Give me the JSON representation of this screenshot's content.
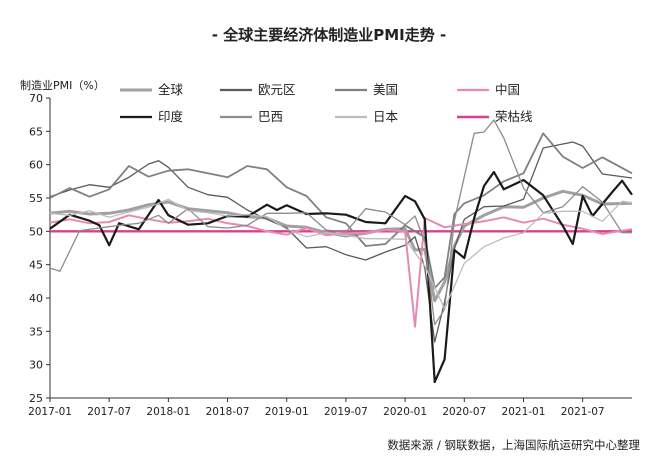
{
  "chart_data": {
    "type": "line",
    "title": "- 全球主要经济体制造业PMI走势 -",
    "ylabel": "制造业PMI（%）",
    "xlabel": "",
    "source": "数据来源 / 钢联数据，上海国际航运研究中心整理",
    "ylim": [
      25,
      70
    ],
    "yticks": [
      25,
      30,
      35,
      40,
      45,
      50,
      55,
      60,
      65,
      70
    ],
    "xlim": [
      "2017-01",
      "2021-12"
    ],
    "xticks": [
      "2017-01",
      "2017-07",
      "2018-01",
      "2018-07",
      "2019-01",
      "2019-07",
      "2020-01",
      "2020-07",
      "2021-01",
      "2021-07"
    ],
    "grid": false,
    "legend_position": "top",
    "reference_line": {
      "name": "荣枯线",
      "value": 50,
      "color": "#d6418f"
    },
    "series": [
      {
        "name": "全球",
        "color": "#a0a0a0",
        "width": 3,
        "points": [
          [
            "2017-01",
            52.7
          ],
          [
            "2017-03",
            53
          ],
          [
            "2017-05",
            52.6
          ],
          [
            "2017-07",
            52.7
          ],
          [
            "2017-09",
            53.2
          ],
          [
            "2017-11",
            54
          ],
          [
            "2018-01",
            54.4
          ],
          [
            "2018-03",
            53.4
          ],
          [
            "2018-05",
            53.1
          ],
          [
            "2018-07",
            52.8
          ],
          [
            "2018-09",
            52.2
          ],
          [
            "2018-11",
            52
          ],
          [
            "2019-01",
            50.8
          ],
          [
            "2019-03",
            50.6
          ],
          [
            "2019-05",
            49.8
          ],
          [
            "2019-07",
            49.3
          ],
          [
            "2019-09",
            49.7
          ],
          [
            "2019-11",
            50.3
          ],
          [
            "2020-01",
            50.4
          ],
          [
            "2020-02",
            47.2
          ],
          [
            "2020-03",
            47.3
          ],
          [
            "2020-04",
            39.6
          ],
          [
            "2020-05",
            42.4
          ],
          [
            "2020-06",
            47.8
          ],
          [
            "2020-07",
            50.8
          ],
          [
            "2020-09",
            52.4
          ],
          [
            "2020-11",
            53.7
          ],
          [
            "2021-01",
            53.6
          ],
          [
            "2021-03",
            55
          ],
          [
            "2021-05",
            56
          ],
          [
            "2021-07",
            55.4
          ],
          [
            "2021-09",
            54.1
          ],
          [
            "2021-12",
            54.2
          ]
        ]
      },
      {
        "name": "欧元区",
        "color": "#5a5a5a",
        "width": 1.3,
        "points": [
          [
            "2017-01",
            55.2
          ],
          [
            "2017-03",
            56.2
          ],
          [
            "2017-05",
            57
          ],
          [
            "2017-07",
            56.6
          ],
          [
            "2017-09",
            58.1
          ],
          [
            "2017-11",
            60.1
          ],
          [
            "2017-12",
            60.6
          ],
          [
            "2018-01",
            59.6
          ],
          [
            "2018-03",
            56.6
          ],
          [
            "2018-05",
            55.5
          ],
          [
            "2018-07",
            55.1
          ],
          [
            "2018-09",
            53.2
          ],
          [
            "2018-11",
            51.8
          ],
          [
            "2019-01",
            50.5
          ],
          [
            "2019-03",
            47.5
          ],
          [
            "2019-05",
            47.7
          ],
          [
            "2019-07",
            46.5
          ],
          [
            "2019-09",
            45.7
          ],
          [
            "2019-11",
            46.9
          ],
          [
            "2020-01",
            47.9
          ],
          [
            "2020-02",
            49.2
          ],
          [
            "2020-03",
            44.5
          ],
          [
            "2020-04",
            33.4
          ],
          [
            "2020-05",
            39.4
          ],
          [
            "2020-06",
            47.4
          ],
          [
            "2020-07",
            51.8
          ],
          [
            "2020-09",
            53.7
          ],
          [
            "2020-11",
            53.8
          ],
          [
            "2021-01",
            54.8
          ],
          [
            "2021-03",
            62.5
          ],
          [
            "2021-05",
            63.1
          ],
          [
            "2021-06",
            63.4
          ],
          [
            "2021-07",
            62.8
          ],
          [
            "2021-09",
            58.6
          ],
          [
            "2021-12",
            58
          ]
        ]
      },
      {
        "name": "美国",
        "color": "#808080",
        "width": 1.8,
        "points": [
          [
            "2017-01",
            55
          ],
          [
            "2017-03",
            56.5
          ],
          [
            "2017-05",
            55.2
          ],
          [
            "2017-07",
            56.3
          ],
          [
            "2017-09",
            59.8
          ],
          [
            "2017-11",
            58.2
          ],
          [
            "2018-01",
            59.1
          ],
          [
            "2018-03",
            59.3
          ],
          [
            "2018-05",
            58.7
          ],
          [
            "2018-07",
            58.1
          ],
          [
            "2018-09",
            59.8
          ],
          [
            "2018-11",
            59.3
          ],
          [
            "2019-01",
            56.6
          ],
          [
            "2019-03",
            55.3
          ],
          [
            "2019-05",
            52.1
          ],
          [
            "2019-07",
            51.2
          ],
          [
            "2019-09",
            47.8
          ],
          [
            "2019-11",
            48.1
          ],
          [
            "2020-01",
            50.9
          ],
          [
            "2020-03",
            49.1
          ],
          [
            "2020-04",
            41.5
          ],
          [
            "2020-05",
            43.1
          ],
          [
            "2020-06",
            52.6
          ],
          [
            "2020-07",
            54.2
          ],
          [
            "2020-09",
            55.4
          ],
          [
            "2020-11",
            57.5
          ],
          [
            "2021-01",
            58.7
          ],
          [
            "2021-03",
            64.7
          ],
          [
            "2021-05",
            61.2
          ],
          [
            "2021-07",
            59.5
          ],
          [
            "2021-09",
            61.1
          ],
          [
            "2021-12",
            58.7
          ]
        ]
      },
      {
        "name": "中国",
        "color": "#e889b3",
        "width": 2,
        "points": [
          [
            "2017-01",
            51.3
          ],
          [
            "2017-03",
            51.8
          ],
          [
            "2017-05",
            51.2
          ],
          [
            "2017-07",
            51.4
          ],
          [
            "2017-09",
            52.4
          ],
          [
            "2017-11",
            51.8
          ],
          [
            "2018-01",
            51.3
          ],
          [
            "2018-03",
            51.5
          ],
          [
            "2018-05",
            51.9
          ],
          [
            "2018-07",
            51.2
          ],
          [
            "2018-09",
            50.8
          ],
          [
            "2018-11",
            50
          ],
          [
            "2019-01",
            49.5
          ],
          [
            "2019-03",
            50.5
          ],
          [
            "2019-05",
            49.4
          ],
          [
            "2019-07",
            49.7
          ],
          [
            "2019-09",
            49.8
          ],
          [
            "2019-11",
            50.2
          ],
          [
            "2020-01",
            50
          ],
          [
            "2020-02",
            35.7
          ],
          [
            "2020-03",
            52
          ],
          [
            "2020-05",
            50.6
          ],
          [
            "2020-07",
            51.1
          ],
          [
            "2020-09",
            51.5
          ],
          [
            "2020-11",
            52.1
          ],
          [
            "2021-01",
            51.3
          ],
          [
            "2021-03",
            51.9
          ],
          [
            "2021-05",
            51
          ],
          [
            "2021-07",
            50.4
          ],
          [
            "2021-09",
            49.6
          ],
          [
            "2021-11",
            50.1
          ],
          [
            "2021-12",
            50.3
          ]
        ]
      },
      {
        "name": "印度",
        "color": "#1a1a1a",
        "width": 2.2,
        "points": [
          [
            "2017-01",
            50.4
          ],
          [
            "2017-03",
            52.5
          ],
          [
            "2017-05",
            51.6
          ],
          [
            "2017-06",
            50.9
          ],
          [
            "2017-07",
            47.9
          ],
          [
            "2017-08",
            51.2
          ],
          [
            "2017-10",
            50.3
          ],
          [
            "2017-12",
            54.7
          ],
          [
            "2018-01",
            52.4
          ],
          [
            "2018-03",
            51
          ],
          [
            "2018-05",
            51.2
          ],
          [
            "2018-07",
            52.3
          ],
          [
            "2018-09",
            52.2
          ],
          [
            "2018-11",
            54
          ],
          [
            "2018-12",
            53.2
          ],
          [
            "2019-01",
            53.9
          ],
          [
            "2019-03",
            52.6
          ],
          [
            "2019-05",
            52.7
          ],
          [
            "2019-07",
            52.5
          ],
          [
            "2019-09",
            51.4
          ],
          [
            "2019-11",
            51.2
          ],
          [
            "2020-01",
            55.3
          ],
          [
            "2020-02",
            54.5
          ],
          [
            "2020-03",
            51.8
          ],
          [
            "2020-04",
            27.4
          ],
          [
            "2020-05",
            30.8
          ],
          [
            "2020-06",
            47.2
          ],
          [
            "2020-07",
            46
          ],
          [
            "2020-08",
            52
          ],
          [
            "2020-09",
            56.8
          ],
          [
            "2020-10",
            58.9
          ],
          [
            "2020-11",
            56.3
          ],
          [
            "2021-01",
            57.7
          ],
          [
            "2021-03",
            55.4
          ],
          [
            "2021-05",
            50.8
          ],
          [
            "2021-06",
            48.1
          ],
          [
            "2021-07",
            55.3
          ],
          [
            "2021-08",
            52.3
          ],
          [
            "2021-10",
            55.9
          ],
          [
            "2021-11",
            57.6
          ],
          [
            "2021-12",
            55.5
          ]
        ]
      },
      {
        "name": "巴西",
        "color": "#8c8c8c",
        "width": 1.3,
        "points": [
          [
            "2017-01",
            44.5
          ],
          [
            "2017-02",
            44
          ],
          [
            "2017-04",
            50.1
          ],
          [
            "2017-06",
            50.5
          ],
          [
            "2017-08",
            50.9
          ],
          [
            "2017-10",
            51.2
          ],
          [
            "2017-12",
            52.4
          ],
          [
            "2018-01",
            51.2
          ],
          [
            "2018-03",
            53.4
          ],
          [
            "2018-05",
            50.7
          ],
          [
            "2018-07",
            50.5
          ],
          [
            "2018-09",
            50.9
          ],
          [
            "2018-11",
            52.7
          ],
          [
            "2019-01",
            52.7
          ],
          [
            "2019-03",
            52.8
          ],
          [
            "2019-05",
            50.2
          ],
          [
            "2019-07",
            49.9
          ],
          [
            "2019-09",
            53.4
          ],
          [
            "2019-11",
            52.9
          ],
          [
            "2020-01",
            51
          ],
          [
            "2020-02",
            52.3
          ],
          [
            "2020-03",
            48.4
          ],
          [
            "2020-04",
            36
          ],
          [
            "2020-05",
            38.3
          ],
          [
            "2020-06",
            51.6
          ],
          [
            "2020-07",
            58.2
          ],
          [
            "2020-08",
            64.7
          ],
          [
            "2020-09",
            64.9
          ],
          [
            "2020-10",
            66.7
          ],
          [
            "2020-11",
            64
          ],
          [
            "2021-01",
            56.5
          ],
          [
            "2021-03",
            52.8
          ],
          [
            "2021-05",
            53.7
          ],
          [
            "2021-07",
            56.7
          ],
          [
            "2021-09",
            54.4
          ],
          [
            "2021-11",
            49.8
          ],
          [
            "2021-12",
            49.8
          ]
        ]
      },
      {
        "name": "日本",
        "color": "#bdbdbd",
        "width": 1.3,
        "points": [
          [
            "2017-01",
            52.7
          ],
          [
            "2017-03",
            52.4
          ],
          [
            "2017-05",
            53.1
          ],
          [
            "2017-07",
            52.1
          ],
          [
            "2017-09",
            52.9
          ],
          [
            "2017-11",
            53.6
          ],
          [
            "2018-01",
            54.8
          ],
          [
            "2018-03",
            53.1
          ],
          [
            "2018-05",
            52.8
          ],
          [
            "2018-07",
            52.3
          ],
          [
            "2018-09",
            52.5
          ],
          [
            "2018-11",
            52.2
          ],
          [
            "2019-01",
            50.3
          ],
          [
            "2019-03",
            49.2
          ],
          [
            "2019-05",
            49.8
          ],
          [
            "2019-07",
            49.4
          ],
          [
            "2019-09",
            48.9
          ],
          [
            "2019-11",
            48.9
          ],
          [
            "2020-01",
            48.8
          ],
          [
            "2020-03",
            44.8
          ],
          [
            "2020-05",
            38.4
          ],
          [
            "2020-07",
            45.2
          ],
          [
            "2020-09",
            47.7
          ],
          [
            "2020-11",
            49
          ],
          [
            "2021-01",
            49.8
          ],
          [
            "2021-03",
            52.7
          ],
          [
            "2021-05",
            53
          ],
          [
            "2021-07",
            53
          ],
          [
            "2021-09",
            51.5
          ],
          [
            "2021-11",
            54.5
          ],
          [
            "2021-12",
            54.3
          ]
        ]
      }
    ]
  }
}
